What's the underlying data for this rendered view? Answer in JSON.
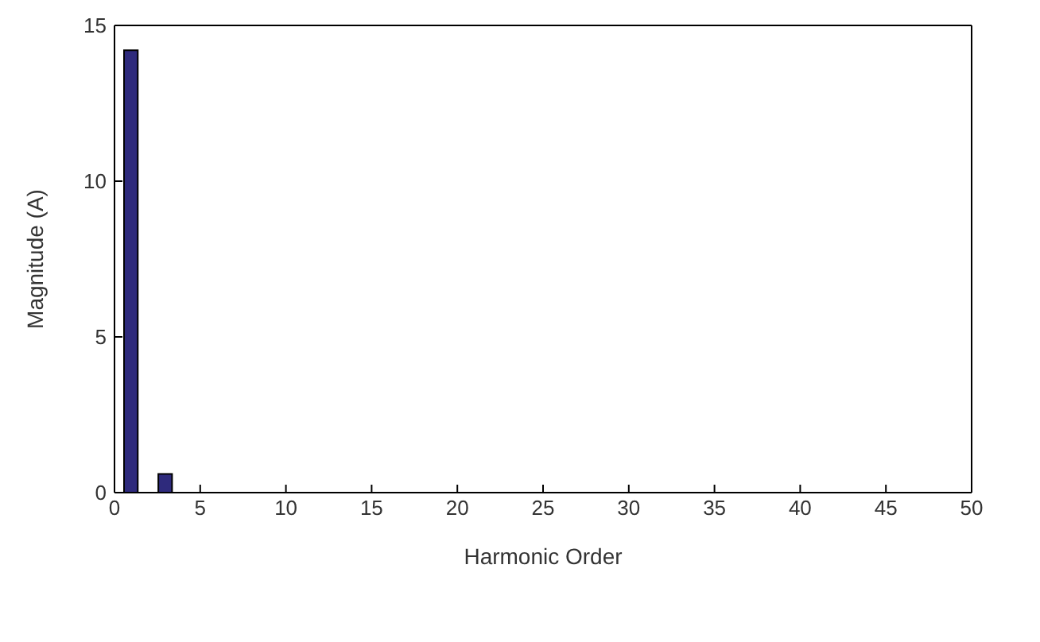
{
  "chart_data": {
    "type": "bar",
    "xlabel": "Harmonic Order",
    "ylabel": "Magnitude (A)",
    "x": [
      1,
      3
    ],
    "values": [
      14.2,
      0.6
    ],
    "color": "#2e2a7c",
    "xlim": [
      0,
      50
    ],
    "xticks": [
      0,
      5,
      10,
      15,
      20,
      25,
      30,
      35,
      40,
      45,
      50
    ],
    "ylim": [
      0,
      15
    ],
    "yticks": [
      0,
      5,
      10,
      15
    ],
    "grid": false,
    "legend": false
  }
}
